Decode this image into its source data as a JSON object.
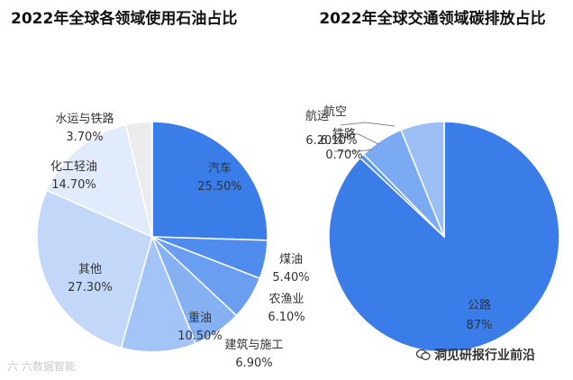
{
  "chart_data": [
    {
      "type": "pie",
      "title": "2022年全球各领域使用石油占比",
      "slices": [
        {
          "label": "汽车",
          "value_text": "25.50%",
          "value": 25.5,
          "color": "#3b7de8",
          "text_color": "#222222"
        },
        {
          "label": "煤油",
          "value_text": "5.40%",
          "value": 5.4,
          "color": "#4f8ced",
          "text_color": "#222222"
        },
        {
          "label": "农渔业",
          "value_text": "6.10%",
          "value": 6.1,
          "color": "#6a9ef0",
          "text_color": "#222222"
        },
        {
          "label": "建筑与施工",
          "value_text": "6.90%",
          "value": 6.9,
          "color": "#85b1f3",
          "text_color": "#222222"
        },
        {
          "label": "重油",
          "value_text": "10.50%",
          "value": 10.5,
          "color": "#a3c4f6",
          "text_color": "#222222"
        },
        {
          "label": "其他",
          "value_text": "27.30%",
          "value": 27.3,
          "color": "#c3d8f9",
          "text_color": "#222222"
        },
        {
          "label": "化工轻油",
          "value_text": "14.70%",
          "value": 14.7,
          "color": "#e1ebfb",
          "text_color": "#222222"
        },
        {
          "label": "水运与铁路",
          "value_text": "3.70%",
          "value": 3.7,
          "color": "#ececec",
          "text_color": "#222222"
        }
      ]
    },
    {
      "type": "pie",
      "title": "2022年全球交通领域碳排放占比",
      "slices": [
        {
          "label": "公路",
          "value_text": "87%",
          "value": 87,
          "color": "#3b7de8"
        },
        {
          "label": "铁路",
          "value_text": "0.70%",
          "value": 0.7,
          "color": "#5b95ee"
        },
        {
          "label": "航运",
          "value_text": "6.20%",
          "value": 6.2,
          "color": "#7aaaf1"
        },
        {
          "label": "航空",
          "value_text": "6.10%",
          "value": 6.1,
          "color": "#9bbff5"
        }
      ]
    }
  ],
  "watermarks": {
    "left": "六 六数据智能",
    "right": "洞见研报行业前沿"
  }
}
